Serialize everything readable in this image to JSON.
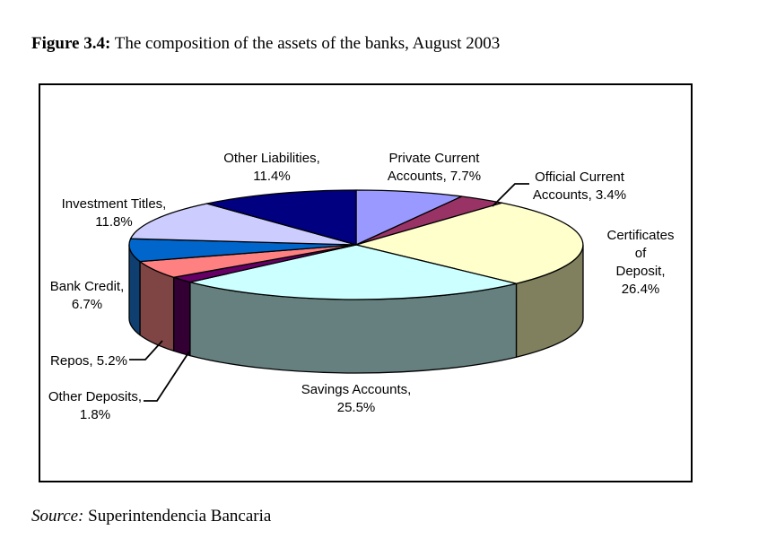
{
  "page": {
    "title_prefix": "Figure 3.4:",
    "title_text": " The composition of the assets of the banks, August 2003",
    "source_prefix": "Source:",
    "source_text": " Superintendencia Bancaria"
  },
  "chart_data": {
    "type": "pie",
    "style": "3d-pie",
    "title": "The composition of the assets of the banks, August 2003",
    "unit": "%",
    "start_angle_deg": 0,
    "direction": "clockwise",
    "legend_position": "none",
    "labels_outside": true,
    "slices": [
      {
        "name": "Private Current Accounts",
        "value": 7.7,
        "color": "#9999FF",
        "side_color": "#4C4C80",
        "label_text": "Private Current\nAccounts, 7.7%"
      },
      {
        "name": "Official Current Accounts",
        "value": 3.4,
        "color": "#993366",
        "side_color": "#4C1933",
        "label_text": "Official Current\nAccounts, 3.4%"
      },
      {
        "name": "Certificates of Deposit",
        "value": 26.4,
        "color": "#FFFFCC",
        "side_color": "#80805F",
        "label_text": "Certificates of\nDeposit,\n26.4%"
      },
      {
        "name": "Savings Accounts",
        "value": 25.5,
        "color": "#CCFFFF",
        "side_color": "#668080",
        "label_text": "Savings Accounts,\n25.5%"
      },
      {
        "name": "Other Deposits",
        "value": 1.8,
        "color": "#660066",
        "side_color": "#330033",
        "label_text": "Other Deposits,\n1.8%"
      },
      {
        "name": "Repos",
        "value": 5.2,
        "color": "#FF8080",
        "side_color": "#7F4545",
        "label_text": "Repos, 5.2%"
      },
      {
        "name": "Bank Credit",
        "value": 6.7,
        "color": "#0066CC",
        "side_color": "#0E3F70",
        "label_text": "Bank Credit,\n6.7%"
      },
      {
        "name": "Investment Titles",
        "value": 11.8,
        "color": "#CCCCFF",
        "side_color": "#666680",
        "label_text": "Investment Titles,\n11.8%"
      },
      {
        "name": "Other Liabilities",
        "value": 11.4,
        "color": "#000080",
        "side_color": "#000040",
        "label_text": "Other Liabilities,\n11.4%"
      }
    ]
  }
}
